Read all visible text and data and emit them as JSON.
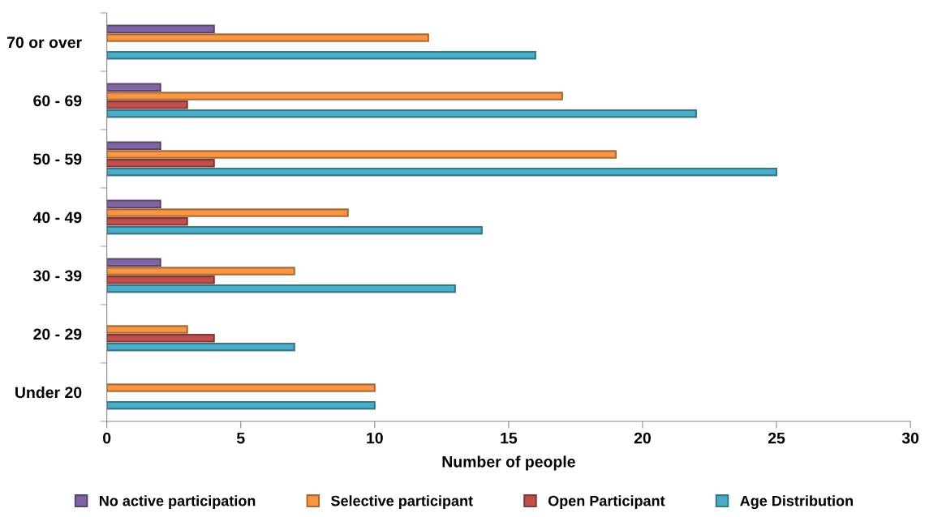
{
  "chart_data": {
    "type": "bar",
    "orientation": "horizontal",
    "xlabel": "Number of people",
    "categories": [
      "70 or over",
      "60 - 69",
      "50 - 59",
      "40 - 49",
      "30 - 39",
      "20 - 29",
      "Under 20"
    ],
    "series": [
      {
        "name": "No active participation",
        "color": "#8064a2",
        "values": [
          4,
          2,
          2,
          2,
          2,
          null,
          null
        ]
      },
      {
        "name": "Selective participant",
        "color": "#f79646",
        "values": [
          12,
          17,
          19,
          9,
          7,
          3,
          10
        ]
      },
      {
        "name": "Open Participant",
        "color": "#c0504d",
        "values": [
          null,
          3,
          4,
          3,
          4,
          4,
          null
        ]
      },
      {
        "name": "Age Distribution",
        "color": "#4bacc6",
        "values": [
          16,
          22,
          25,
          14,
          13,
          7,
          10
        ]
      }
    ],
    "xlim": [
      0,
      30
    ],
    "xticks": [
      0,
      5,
      10,
      15,
      20,
      25,
      30
    ],
    "grid": false,
    "legend": "bottom"
  }
}
